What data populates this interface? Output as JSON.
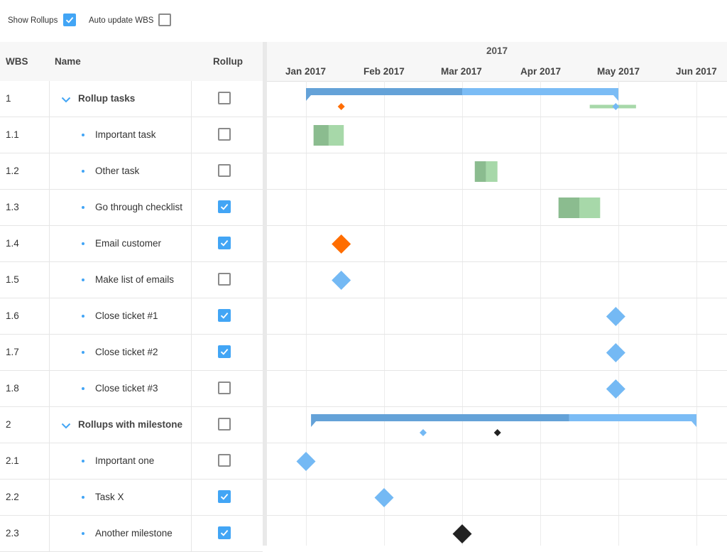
{
  "toolbar": {
    "show_rollups_label": "Show Rollups",
    "show_rollups_checked": true,
    "auto_update_label": "Auto update WBS",
    "auto_update_checked": false
  },
  "grid": {
    "headers": {
      "wbs": "WBS",
      "name": "Name",
      "rollup": "Rollup"
    },
    "rows": [
      {
        "wbs": "1",
        "name": "Rollup tasks",
        "parent": true,
        "rollup": false
      },
      {
        "wbs": "1.1",
        "name": "Important task",
        "parent": false,
        "rollup": false
      },
      {
        "wbs": "1.2",
        "name": "Other task",
        "parent": false,
        "rollup": false
      },
      {
        "wbs": "1.3",
        "name": "Go through checklist",
        "parent": false,
        "rollup": true
      },
      {
        "wbs": "1.4",
        "name": "Email customer",
        "parent": false,
        "rollup": true
      },
      {
        "wbs": "1.5",
        "name": "Make list of emails",
        "parent": false,
        "rollup": false
      },
      {
        "wbs": "1.6",
        "name": "Close ticket #1",
        "parent": false,
        "rollup": true
      },
      {
        "wbs": "1.7",
        "name": "Close ticket #2",
        "parent": false,
        "rollup": true
      },
      {
        "wbs": "1.8",
        "name": "Close ticket #3",
        "parent": false,
        "rollup": false
      },
      {
        "wbs": "2",
        "name": "Rollups with milestone",
        "parent": true,
        "rollup": false
      },
      {
        "wbs": "2.1",
        "name": "Important one",
        "parent": false,
        "rollup": false
      },
      {
        "wbs": "2.2",
        "name": "Task X",
        "parent": false,
        "rollup": true
      },
      {
        "wbs": "2.3",
        "name": "Another milestone",
        "parent": false,
        "rollup": true
      }
    ]
  },
  "timeline": {
    "year": "2017",
    "months": [
      "Jan 2017",
      "Feb 2017",
      "Mar 2017",
      "Apr 2017",
      "May 2017",
      "Jun 2017"
    ]
  },
  "colors": {
    "accent": "#42a5f5",
    "summary_done": "#64a2d8",
    "summary_todo": "#7bbcf5",
    "task_done": "#8bbc8f",
    "task_todo": "#a7d8a9",
    "milestone_blue": "#74b9f4",
    "milestone_orange": "#ff6d00",
    "milestone_dark": "#222222"
  },
  "gantt": {
    "rows": [
      {
        "type": "summary",
        "start": "2017-01-01",
        "end": "2017-05-01",
        "percent_done": 50,
        "rollups": [
          {
            "kind": "milestone",
            "date": "2017-01-15",
            "color": "milestone_orange"
          },
          {
            "kind": "task",
            "start": "2017-04-20",
            "end": "2017-05-08"
          },
          {
            "kind": "milestone",
            "date": "2017-04-30",
            "color": "milestone_blue"
          }
        ]
      },
      {
        "type": "task",
        "start": "2017-01-04",
        "end": "2017-01-16",
        "percent_done": 50
      },
      {
        "type": "task",
        "start": "2017-03-06",
        "end": "2017-03-15",
        "percent_done": 50
      },
      {
        "type": "task",
        "start": "2017-04-08",
        "end": "2017-04-24",
        "percent_done": 50
      },
      {
        "type": "milestone",
        "date": "2017-01-15",
        "color": "milestone_orange"
      },
      {
        "type": "milestone",
        "date": "2017-01-15",
        "color": "milestone_blue"
      },
      {
        "type": "milestone",
        "date": "2017-04-30",
        "color": "milestone_blue"
      },
      {
        "type": "milestone",
        "date": "2017-04-30",
        "color": "milestone_blue"
      },
      {
        "type": "milestone",
        "date": "2017-04-30",
        "color": "milestone_blue"
      },
      {
        "type": "summary",
        "start": "2017-01-03",
        "end": "2017-06-01",
        "percent_done": 67,
        "rollups": [
          {
            "kind": "milestone",
            "date": "2017-02-15",
            "color": "milestone_blue"
          },
          {
            "kind": "milestone",
            "date": "2017-03-15",
            "color": "milestone_dark"
          },
          {
            "kind": "milestone",
            "date": "2017-06-15",
            "color": "milestone_blue"
          }
        ]
      },
      {
        "type": "milestone",
        "date": "2017-01-01",
        "color": "milestone_blue"
      },
      {
        "type": "milestone",
        "date": "2017-02-01",
        "color": "milestone_blue"
      },
      {
        "type": "milestone",
        "date": "2017-03-01",
        "color": "milestone_dark"
      }
    ]
  }
}
